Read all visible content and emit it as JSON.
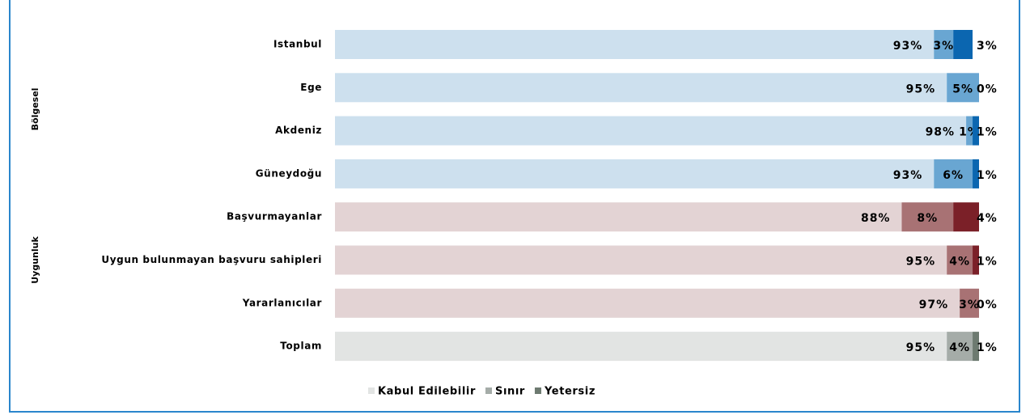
{
  "chart_data": {
    "type": "stacked-bar-horizontal",
    "categories": [
      "Istanbul",
      "Ege",
      "Akdeniz",
      "Güneydoğu",
      "Başvurmayanlar",
      "Uygun bulunmayan başvuru sahipleri",
      "Yararlanıcılar",
      "Toplam"
    ],
    "groups": [
      {
        "label": "Bölgesel",
        "count": 4,
        "colors": [
          "#cde0ee",
          "#69a6d2",
          "#0b66b0"
        ]
      },
      {
        "label": "Uygunluk",
        "count": 3,
        "colors": [
          "#e3d3d4",
          "#a87274",
          "#7b2028"
        ]
      }
    ],
    "series": [
      {
        "name": "Kabul Edilebilir",
        "color": "#e2e4e3",
        "values": [
          93,
          95,
          98,
          93,
          88,
          95,
          97,
          95
        ],
        "value_labels": [
          "93%",
          "95%",
          "98%",
          "93%",
          "88%",
          "95%",
          "97%",
          "95%"
        ]
      },
      {
        "name": "Sınır",
        "color": "#a5aca8",
        "values": [
          3,
          5,
          1,
          6,
          8,
          4,
          3,
          4
        ],
        "value_labels": [
          "3%",
          "5%",
          "1%",
          "6%",
          "8%",
          "4%",
          "3%",
          "4%"
        ]
      },
      {
        "name": "Yetersiz",
        "color": "#6d7a70",
        "values": [
          3,
          0,
          1,
          1,
          4,
          1,
          0,
          1
        ],
        "value_labels": [
          "3%",
          "0%",
          "1%",
          "1%",
          "4%",
          "1%",
          "0%",
          "1%"
        ]
      }
    ],
    "xlim": [
      0,
      100
    ]
  }
}
